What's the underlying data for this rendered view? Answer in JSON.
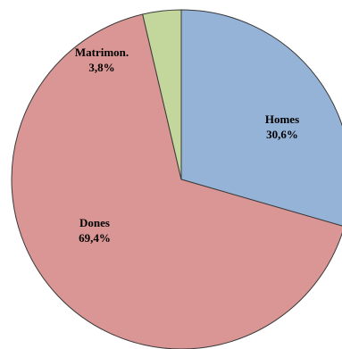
{
  "chart_data": {
    "type": "pie",
    "categories": [
      "Homes",
      "Dones",
      "Matrimon."
    ],
    "values": [
      30.6,
      69.4,
      3.8
    ],
    "value_labels": [
      "30,6%",
      "69,4%",
      "3,8%"
    ],
    "colors": [
      "#95b3d7",
      "#d99694",
      "#c3d69b"
    ]
  }
}
